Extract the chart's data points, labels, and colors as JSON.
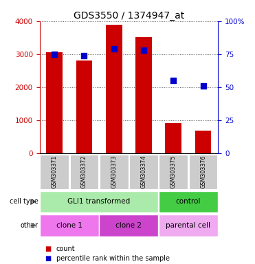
{
  "title": "GDS3550 / 1374947_at",
  "samples": [
    "GSM303371",
    "GSM303372",
    "GSM303373",
    "GSM303374",
    "GSM303375",
    "GSM303376"
  ],
  "counts": [
    3060,
    2800,
    3900,
    3520,
    920,
    680
  ],
  "percentile_ranks": [
    75,
    74,
    79,
    78,
    55,
    51
  ],
  "ylim_left": [
    0,
    4000
  ],
  "ylim_right": [
    0,
    100
  ],
  "yticks_left": [
    0,
    1000,
    2000,
    3000,
    4000
  ],
  "yticks_right": [
    0,
    25,
    50,
    75,
    100
  ],
  "ytick_labels_right": [
    "0",
    "25",
    "50",
    "75",
    "100%"
  ],
  "bar_color": "#cc0000",
  "dot_color": "#0000cc",
  "bar_width": 0.55,
  "cell_type_groups": [
    {
      "name": "GLI1 transformed",
      "span": [
        0,
        4
      ],
      "color": "#aaeaaa"
    },
    {
      "name": "control",
      "span": [
        4,
        6
      ],
      "color": "#44cc44"
    }
  ],
  "other_groups": [
    {
      "name": "clone 1",
      "span": [
        0,
        2
      ],
      "color": "#ee77ee"
    },
    {
      "name": "clone 2",
      "span": [
        2,
        4
      ],
      "color": "#cc44cc"
    },
    {
      "name": "parental cell",
      "span": [
        4,
        6
      ],
      "color": "#f0aaf0"
    }
  ],
  "tick_label_color_left": "#cc0000",
  "tick_label_color_right": "#0000cc",
  "background_color": "#ffffff",
  "sample_bg_color": "#cccccc"
}
